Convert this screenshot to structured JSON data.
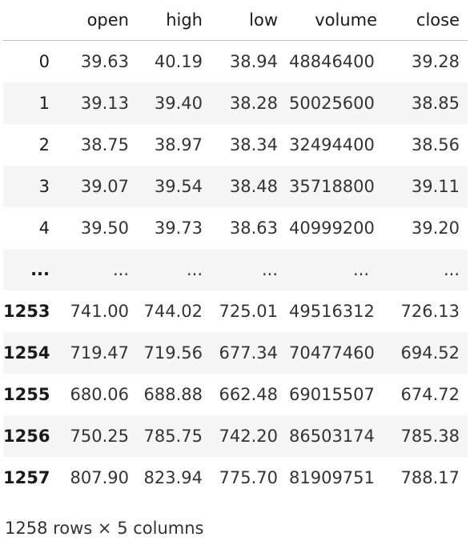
{
  "dataframe": {
    "columns": [
      "open",
      "high",
      "low",
      "volume",
      "close"
    ],
    "rows": [
      {
        "index": "0",
        "open": "39.63",
        "high": "40.19",
        "low": "38.94",
        "volume": "48846400",
        "close": "39.28"
      },
      {
        "index": "1",
        "open": "39.13",
        "high": "39.40",
        "low": "38.28",
        "volume": "50025600",
        "close": "38.85"
      },
      {
        "index": "2",
        "open": "38.75",
        "high": "38.97",
        "low": "38.34",
        "volume": "32494400",
        "close": "38.56"
      },
      {
        "index": "3",
        "open": "39.07",
        "high": "39.54",
        "low": "38.48",
        "volume": "35718800",
        "close": "39.11"
      },
      {
        "index": "4",
        "open": "39.50",
        "high": "39.73",
        "low": "38.63",
        "volume": "40999200",
        "close": "39.20"
      },
      {
        "index": "...",
        "open": "...",
        "high": "...",
        "low": "...",
        "volume": "...",
        "close": "..."
      },
      {
        "index": "1253",
        "open": "741.00",
        "high": "744.02",
        "low": "725.01",
        "volume": "49516312",
        "close": "726.13"
      },
      {
        "index": "1254",
        "open": "719.47",
        "high": "719.56",
        "low": "677.34",
        "volume": "70477460",
        "close": "694.52"
      },
      {
        "index": "1255",
        "open": "680.06",
        "high": "688.88",
        "low": "662.48",
        "volume": "69015507",
        "close": "674.72"
      },
      {
        "index": "1256",
        "open": "750.25",
        "high": "785.75",
        "low": "742.20",
        "volume": "86503174",
        "close": "785.38"
      },
      {
        "index": "1257",
        "open": "807.90",
        "high": "823.94",
        "low": "775.70",
        "volume": "81909751",
        "close": "788.17"
      }
    ],
    "shape_text": "1258 rows × 5 columns"
  }
}
